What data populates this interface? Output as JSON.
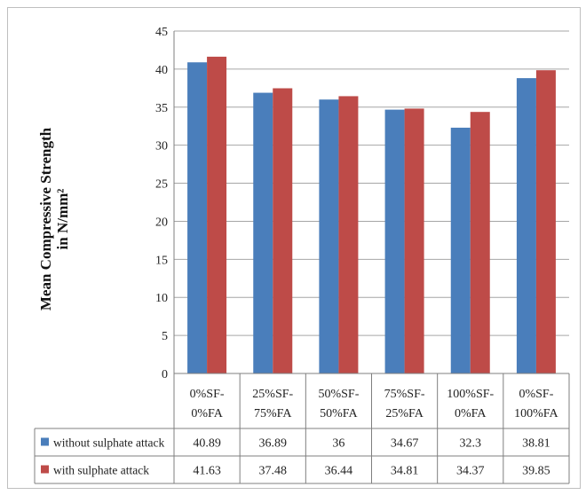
{
  "chart_data": {
    "type": "bar",
    "ylabel_line1": "Mean Compressive Strength",
    "ylabel_line2": "in N/mm²",
    "ylim": [
      0,
      45
    ],
    "yticks": [
      0,
      5,
      10,
      15,
      20,
      25,
      30,
      35,
      40,
      45
    ],
    "grid": true,
    "legend": "data-table",
    "categories": [
      [
        "0%SF-",
        "0%FA"
      ],
      [
        "25%SF-",
        "75%FA"
      ],
      [
        "50%SF-",
        "50%FA"
      ],
      [
        "75%SF-",
        "25%FA"
      ],
      [
        "100%SF-",
        "0%FA"
      ],
      [
        "0%SF-",
        "100%FA"
      ]
    ],
    "series": [
      {
        "name": "without sulphate attack",
        "color": "#4a7ebb",
        "values": [
          40.89,
          36.89,
          36,
          34.67,
          32.3,
          38.81
        ],
        "labels": [
          "40.89",
          "36.89",
          "36",
          "34.67",
          "32.3",
          "38.81"
        ]
      },
      {
        "name": "with sulphate attack",
        "color": "#be4b48",
        "values": [
          41.63,
          37.48,
          36.44,
          34.81,
          34.37,
          39.85
        ],
        "labels": [
          "41.63",
          "37.48",
          "36.44",
          "34.81",
          "34.37",
          "39.85"
        ]
      }
    ]
  }
}
